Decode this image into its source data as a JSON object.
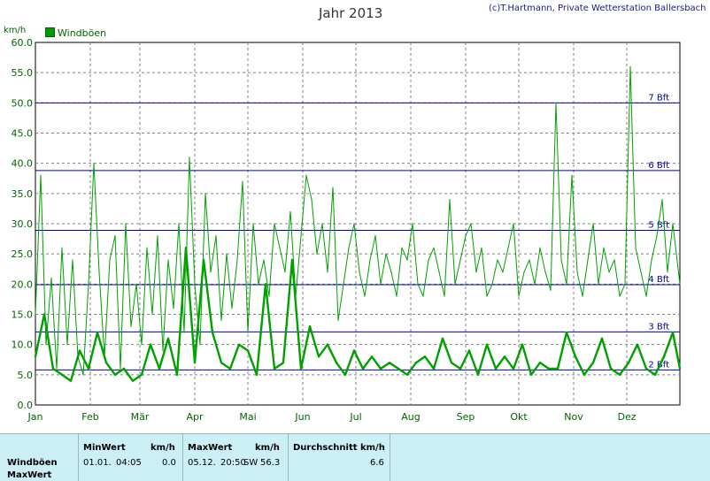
{
  "credit": "(c)T.Hartmann, Private Wetterstation Ballersbach",
  "title": "Jahr 2013",
  "y_unit": "km/h",
  "legend_label": "Windböen",
  "colors": {
    "series_main": "#00a000",
    "series_thin": "#00a000",
    "grid": "#808080",
    "beaufort_lines": "#0000a0",
    "axis_text": "#006600",
    "table_bg": "#cceff5"
  },
  "chart_data": {
    "type": "line",
    "title": "Jahr 2013",
    "ylabel": "km/h",
    "ylim": [
      0,
      60
    ],
    "yticks": [
      "0.0",
      "5.0",
      "10.0",
      "15.0",
      "20.0",
      "25.0",
      "30.0",
      "35.0",
      "40.0",
      "45.0",
      "50.0",
      "55.0",
      "60.0"
    ],
    "xlim": [
      1,
      365
    ],
    "month_labels": [
      "Jan",
      "Feb",
      "Mär",
      "Apr",
      "Mai",
      "Jun",
      "Jul",
      "Aug",
      "Sep",
      "Okt",
      "Nov",
      "Dez"
    ],
    "month_start_day": [
      1,
      32,
      60,
      91,
      121,
      152,
      182,
      213,
      244,
      274,
      305,
      335
    ],
    "grid": true,
    "legend": "top-left",
    "beaufort_levels": [
      {
        "label": "2 Bft",
        "value": 5.8
      },
      {
        "label": "3 Bft",
        "value": 12.1
      },
      {
        "label": "4 Bft",
        "value": 19.9
      },
      {
        "label": "5 Bft",
        "value": 28.9
      },
      {
        "label": "6 Bft",
        "value": 38.8
      },
      {
        "label": "7 Bft",
        "value": 50.0
      }
    ],
    "series": [
      {
        "name": "Windböen",
        "style": "thick",
        "x": [
          1,
          6,
          11,
          16,
          21,
          26,
          31,
          36,
          41,
          46,
          51,
          56,
          61,
          66,
          71,
          76,
          81,
          86,
          91,
          96,
          101,
          106,
          111,
          116,
          121,
          126,
          131,
          136,
          141,
          146,
          151,
          156,
          161,
          166,
          171,
          176,
          181,
          186,
          191,
          196,
          201,
          206,
          211,
          216,
          221,
          226,
          231,
          236,
          241,
          246,
          251,
          256,
          261,
          266,
          271,
          276,
          281,
          286,
          291,
          296,
          301,
          306,
          311,
          316,
          321,
          326,
          331,
          336,
          341,
          346,
          351,
          356,
          361,
          365
        ],
        "values": [
          8,
          15,
          6,
          5,
          4,
          9,
          6,
          12,
          7,
          5,
          6,
          4,
          5,
          10,
          6,
          11,
          5,
          26,
          7,
          24,
          12,
          7,
          6,
          10,
          9,
          5,
          20,
          6,
          7,
          24,
          6,
          13,
          8,
          10,
          7,
          5,
          9,
          6,
          8,
          6,
          7,
          6,
          5,
          7,
          8,
          6,
          11,
          7,
          6,
          9,
          5,
          10,
          6,
          8,
          6,
          10,
          5,
          7,
          6,
          6,
          12,
          8,
          5,
          7,
          11,
          6,
          5,
          7,
          10,
          6,
          5,
          8,
          12,
          6
        ]
      },
      {
        "name": "MaxWert",
        "style": "thin",
        "x": [
          1,
          4,
          7,
          10,
          13,
          16,
          19,
          22,
          25,
          28,
          31,
          34,
          37,
          40,
          43,
          46,
          49,
          52,
          55,
          58,
          61,
          64,
          67,
          70,
          73,
          76,
          79,
          82,
          85,
          88,
          91,
          94,
          97,
          100,
          103,
          106,
          109,
          112,
          115,
          118,
          121,
          124,
          127,
          130,
          133,
          136,
          139,
          142,
          145,
          148,
          151,
          154,
          157,
          160,
          163,
          166,
          169,
          172,
          175,
          178,
          181,
          184,
          187,
          190,
          193,
          196,
          199,
          202,
          205,
          208,
          211,
          214,
          217,
          220,
          223,
          226,
          229,
          232,
          235,
          238,
          241,
          244,
          247,
          250,
          253,
          256,
          259,
          262,
          265,
          268,
          271,
          274,
          277,
          280,
          283,
          286,
          289,
          292,
          295,
          298,
          301,
          304,
          307,
          310,
          313,
          316,
          319,
          322,
          325,
          328,
          331,
          334,
          337,
          340,
          343,
          346,
          349,
          352,
          355,
          358,
          361,
          365
        ],
        "values": [
          15,
          38,
          10,
          21,
          6,
          26,
          10,
          24,
          8,
          5,
          20,
          40,
          22,
          8,
          24,
          28,
          6,
          30,
          13,
          20,
          10,
          26,
          15,
          28,
          9,
          24,
          16,
          30,
          12,
          41,
          20,
          10,
          35,
          22,
          28,
          14,
          25,
          16,
          24,
          37,
          12,
          30,
          20,
          24,
          18,
          30,
          26,
          22,
          32,
          18,
          28,
          38,
          34,
          25,
          30,
          22,
          36,
          14,
          20,
          26,
          30,
          22,
          18,
          24,
          28,
          20,
          25,
          22,
          18,
          26,
          24,
          30,
          20,
          18,
          24,
          26,
          22,
          18,
          34,
          20,
          24,
          28,
          30,
          22,
          26,
          18,
          20,
          24,
          22,
          26,
          30,
          18,
          22,
          24,
          20,
          26,
          22,
          19,
          50,
          24,
          20,
          38,
          22,
          18,
          24,
          30,
          20,
          26,
          22,
          24,
          18,
          20,
          56,
          26,
          22,
          18,
          24,
          28,
          34,
          22,
          30,
          20
        ]
      }
    ]
  },
  "table": {
    "row_label_1": "Windböen",
    "row_label_2": "MaxWert",
    "min_header": "MinWert",
    "min_unit_header": "km/h",
    "min_date": "01.01.",
    "min_time": "04:05",
    "min_value": "0.0",
    "max_header": "MaxWert",
    "max_unit_header": "km/h",
    "max_date": "05.12.",
    "max_time": "20:50",
    "max_dir": "SW",
    "max_value": "56.3",
    "avg_header": "Durchschnitt km/h",
    "avg_value": "6.6"
  }
}
